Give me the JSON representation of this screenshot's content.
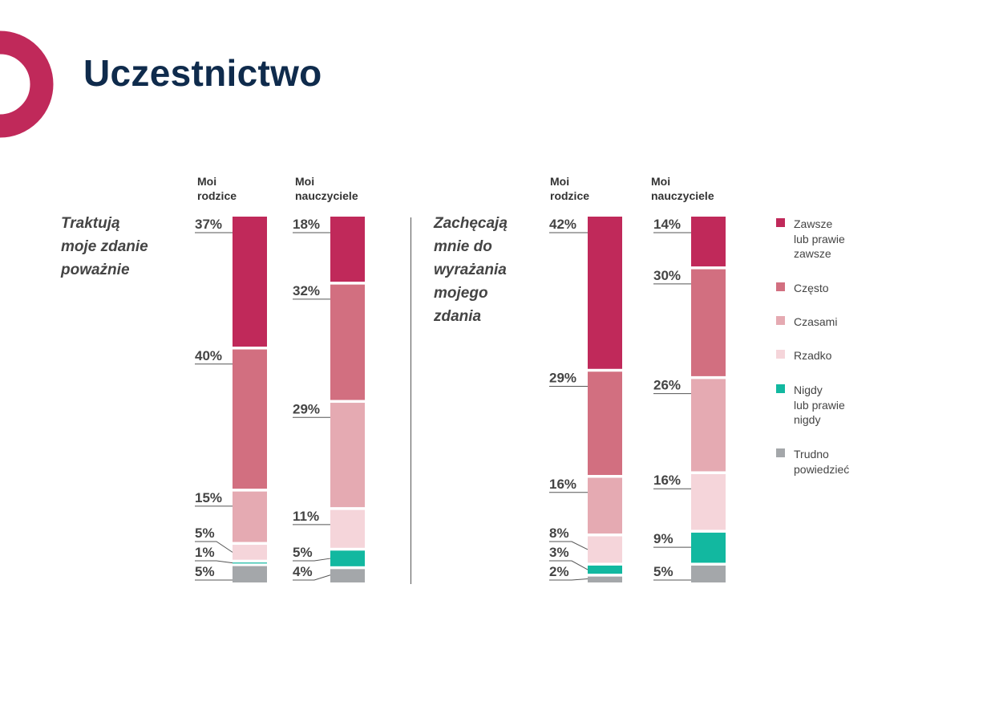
{
  "page": {
    "title": "Uczestnictwo"
  },
  "groups": [
    {
      "question": "Traktują\nmoje zdanie\npoważnie",
      "columns": [
        {
          "header": "Moi\nrodzice"
        },
        {
          "header": "Moi\nnauczyciele"
        }
      ]
    },
    {
      "question": "Zachęcają\nmnie do\nwyrażania\nmojego\nzdania",
      "columns": [
        {
          "header": "Moi\nrodzice"
        },
        {
          "header": "Moi\nnauczyciele"
        }
      ]
    }
  ],
  "legend": [
    {
      "label": "Zawsze\nlub prawie\nzawsze",
      "color": "#c0295a"
    },
    {
      "label": "Często",
      "color": "#d26f80"
    },
    {
      "label": "Czasami",
      "color": "#e5aab2"
    },
    {
      "label": "Rzadko",
      "color": "#f5d5da"
    },
    {
      "label": "Nigdy\nlub prawie\nnigdy",
      "color": "#12b8a0"
    },
    {
      "label": "Trudno\npowiedzieć",
      "color": "#a4a7aa"
    }
  ],
  "chart_data": {
    "type": "bar",
    "stacked": true,
    "orientation": "vertical",
    "unit": "%",
    "categories": [
      "Traktują moje zdanie poważnie — Moi rodzice",
      "Traktują moje zdanie poważnie — Moi nauczyciele",
      "Zachęcają mnie do wyrażania mojego zdania — Moi rodzice",
      "Zachęcają mnie do wyrażania mojego zdania — Moi nauczyciele"
    ],
    "series": [
      {
        "name": "Zawsze lub prawie zawsze",
        "values": [
          37,
          18,
          42,
          14
        ]
      },
      {
        "name": "Często",
        "values": [
          40,
          32,
          29,
          30
        ]
      },
      {
        "name": "Czasami",
        "values": [
          15,
          29,
          16,
          26
        ]
      },
      {
        "name": "Rzadko",
        "values": [
          5,
          11,
          8,
          16
        ]
      },
      {
        "name": "Nigdy lub prawie nigdy",
        "values": [
          1,
          5,
          3,
          9
        ]
      },
      {
        "name": "Trudno powiedzieć",
        "values": [
          5,
          4,
          2,
          5
        ]
      }
    ],
    "value_labels": [
      [
        "37%",
        "40%",
        "15%",
        "5%",
        "1%",
        "5%"
      ],
      [
        "18%",
        "32%",
        "29%",
        "11%",
        "5%",
        "4%"
      ],
      [
        "42%",
        "29%",
        "16%",
        "8%",
        "3%",
        "2%"
      ],
      [
        "14%",
        "30%",
        "26%",
        "16%",
        "9%",
        "5%"
      ]
    ],
    "ylim": [
      0,
      100
    ]
  }
}
